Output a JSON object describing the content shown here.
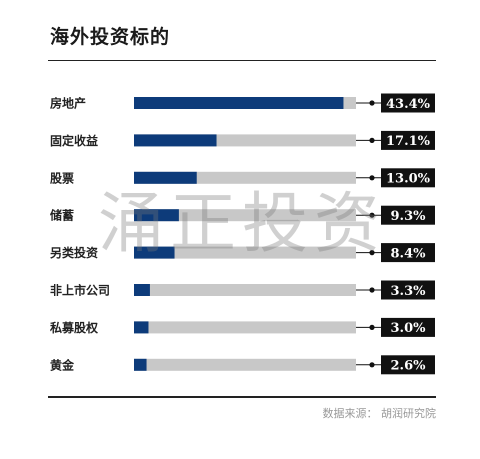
{
  "header": {
    "title": "海外投资标的"
  },
  "watermark": "涌正投资",
  "footer": {
    "source": "数据来源： 胡润研究院"
  },
  "chart_data": {
    "type": "bar",
    "orientation": "horizontal",
    "title": "海外投资标的",
    "categories": [
      "房地产",
      "固定收益",
      "股票",
      "储蓄",
      "另类投资",
      "非上市公司",
      "私募股权",
      "黄金"
    ],
    "values": [
      43.4,
      17.1,
      13.0,
      9.3,
      8.4,
      3.3,
      3.0,
      2.6
    ],
    "value_labels": [
      "43.4%",
      "17.1%",
      "13.0%",
      "9.3%",
      "8.4%",
      "3.3%",
      "3.0%",
      "2.6%"
    ],
    "unit": "%",
    "xlim": [
      0,
      46
    ],
    "colors": {
      "bar": "#0d3b7a",
      "track": "#c8c8c8",
      "label_bg": "#111111",
      "connector": "#111111"
    },
    "grid": false,
    "legend": "none"
  }
}
